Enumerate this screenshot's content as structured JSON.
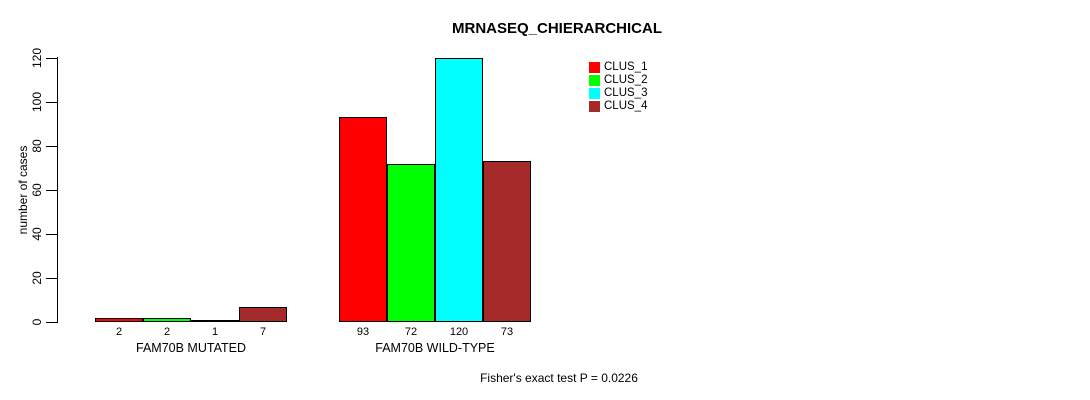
{
  "colors": {
    "background": "#ffffff",
    "foreground": "#000000"
  },
  "chart_data": {
    "type": "bar",
    "title": "MRNASEQ_CHIERARCHICAL",
    "ylabel": "number of cases",
    "xlabel": "",
    "ylim": [
      0,
      120
    ],
    "yticks": [
      0,
      20,
      40,
      60,
      80,
      100,
      120
    ],
    "categories": [
      "FAM70B MUTATED",
      "FAM70B WILD-TYPE"
    ],
    "series": [
      {
        "name": "CLUS_1",
        "color": "#ff0000",
        "values": [
          2,
          93
        ]
      },
      {
        "name": "CLUS_2",
        "color": "#00ff00",
        "values": [
          2,
          72
        ]
      },
      {
        "name": "CLUS_3",
        "color": "#00ffff",
        "values": [
          1,
          120
        ]
      },
      {
        "name": "CLUS_4",
        "color": "#a52a2a",
        "values": [
          7,
          73
        ]
      }
    ],
    "bar_value_labels": true,
    "legend_position": "top-right",
    "grid": false,
    "annotation": "Fisher's exact test P = 0.0226"
  }
}
